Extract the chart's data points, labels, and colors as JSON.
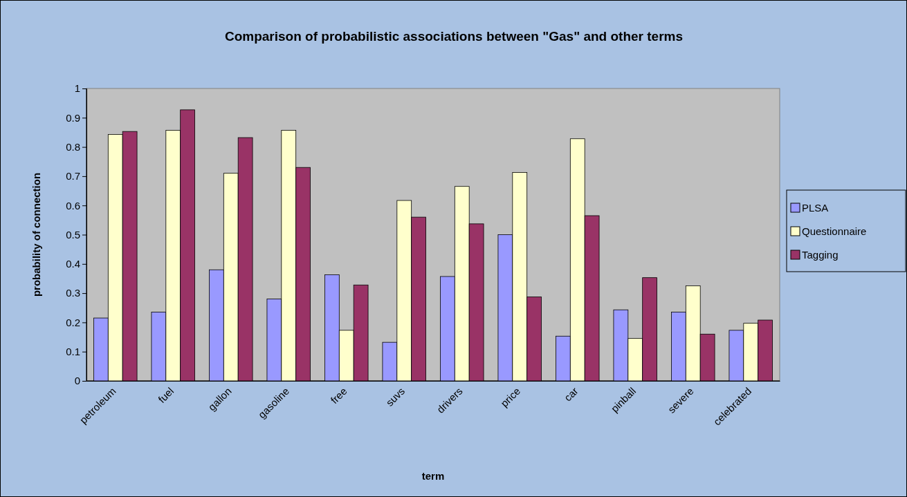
{
  "chart_data": {
    "type": "bar",
    "title": "Comparison of probabilistic associations between \"Gas\" and other terms",
    "xlabel": "term",
    "ylabel": "probability of connection",
    "categories": [
      "petroleum",
      "fuel",
      "gallon",
      "gasoline",
      "free",
      "suvs",
      "drivers",
      "price",
      "car",
      "pinball",
      "severe",
      "celebrated"
    ],
    "series": [
      {
        "name": "PLSA",
        "color": "#9999ff",
        "values": [
          0.215,
          0.235,
          0.38,
          0.28,
          0.363,
          0.132,
          0.357,
          0.5,
          0.153,
          0.243,
          0.235,
          0.173
        ]
      },
      {
        "name": "Questionnaire",
        "color": "#ffffcc",
        "values": [
          0.843,
          0.857,
          0.71,
          0.857,
          0.173,
          0.617,
          0.665,
          0.713,
          0.828,
          0.145,
          0.325,
          0.197
        ]
      },
      {
        "name": "Tagging",
        "color": "#993366",
        "values": [
          0.853,
          0.927,
          0.832,
          0.73,
          0.328,
          0.56,
          0.537,
          0.287,
          0.565,
          0.353,
          0.16,
          0.208
        ]
      }
    ],
    "ylim": [
      0,
      1
    ],
    "yticks": [
      0,
      0.1,
      0.2,
      0.3,
      0.4,
      0.5,
      0.6,
      0.7,
      0.8,
      0.9,
      1
    ],
    "grid": false,
    "legend": "right"
  }
}
